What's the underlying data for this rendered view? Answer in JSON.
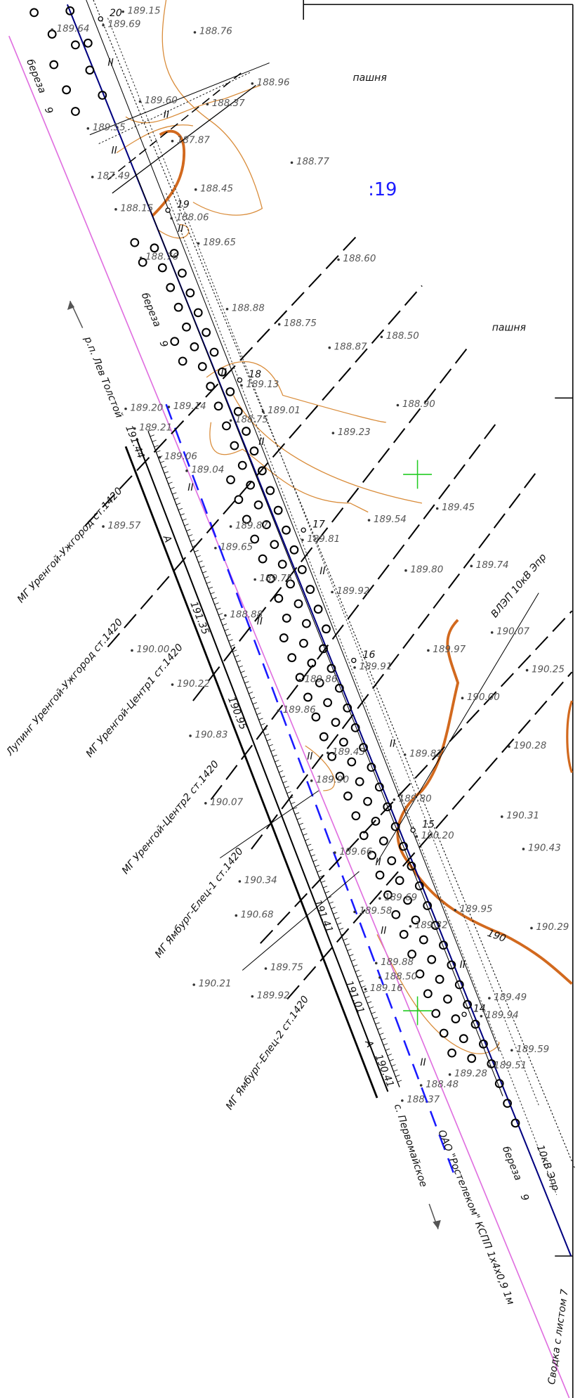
{
  "field_labels": [
    "пашня",
    "пашня"
  ],
  "sheet_number": ":19",
  "stations": [
    "20",
    "19",
    "18",
    "17",
    "16",
    "15",
    "14"
  ],
  "elevations": [
    "189.15",
    "189.69",
    "189.64",
    "188.76",
    "188.96",
    "189.60",
    "188.37",
    "189.55",
    "187.87",
    "188.77",
    "187.49",
    "188.45",
    "188.15",
    "188.06",
    "189.65",
    "188.76",
    "188.60",
    "188.88",
    "188.75",
    "188.87",
    "188.50",
    "189.13",
    "189.20",
    "189.14",
    "189.01",
    "188.75",
    "188.90",
    "189.21",
    "189.23",
    "189.06",
    "189.04",
    "189.57",
    "189.54",
    "189.45",
    "189.87",
    "189.81",
    "189.65",
    "189.80",
    "189.74",
    "189.75",
    "189.92",
    "188.88",
    "190.07",
    "189.97",
    "190.00",
    "189.91",
    "190.25",
    "190.22",
    "189.86",
    "190.00",
    "189.86",
    "190.83",
    "190.28",
    "189.43",
    "189.82",
    "189.90",
    "190.07",
    "189.80",
    "190.31",
    "190.20",
    "189.66",
    "190.43",
    "190.34",
    "189.69",
    "189.95",
    "190.68",
    "189.58",
    "189.32",
    "190.29",
    "189.88",
    "189.75",
    "188.50",
    "190.21",
    "189.16",
    "189.92",
    "189.49",
    "189.94",
    "189.59",
    "189.28",
    "189.51",
    "188.48",
    "188.37"
  ],
  "trees": [
    {
      "species": "береза",
      "count": "9"
    },
    {
      "species": "береза",
      "count": "9"
    },
    {
      "species": "береза",
      "count": "9"
    }
  ],
  "settlements": [
    "р.п. Лев Толстой",
    "с. Первомайское"
  ],
  "pipelines": [
    "МГ Уренгой-Ужгород ст.1420",
    "Лупинг Уренгой-Ужгород ст.1420",
    "МГ Уренгой-Центр1 ст.1420",
    "МГ Уренгой-Центр2 ст.1420",
    "МГ Ямбург-Елец-1 ст.1420",
    "МГ Ямбург-Елец-2 ст.1420"
  ],
  "power_lines": [
    "ВЛЭП 10кВ Эпр",
    "10кВ Эпр"
  ],
  "cable": "ОАО \"Ростелеком\" КСПП 1х4х0,9 1м",
  "road_marks": [
    "191.44",
    "191.35",
    "190.95",
    "191.41",
    "191.01",
    "190.41"
  ],
  "road_letter": "A",
  "hatch": "II",
  "contour_label": "190",
  "sheet_link": "Сводка с листом 7"
}
